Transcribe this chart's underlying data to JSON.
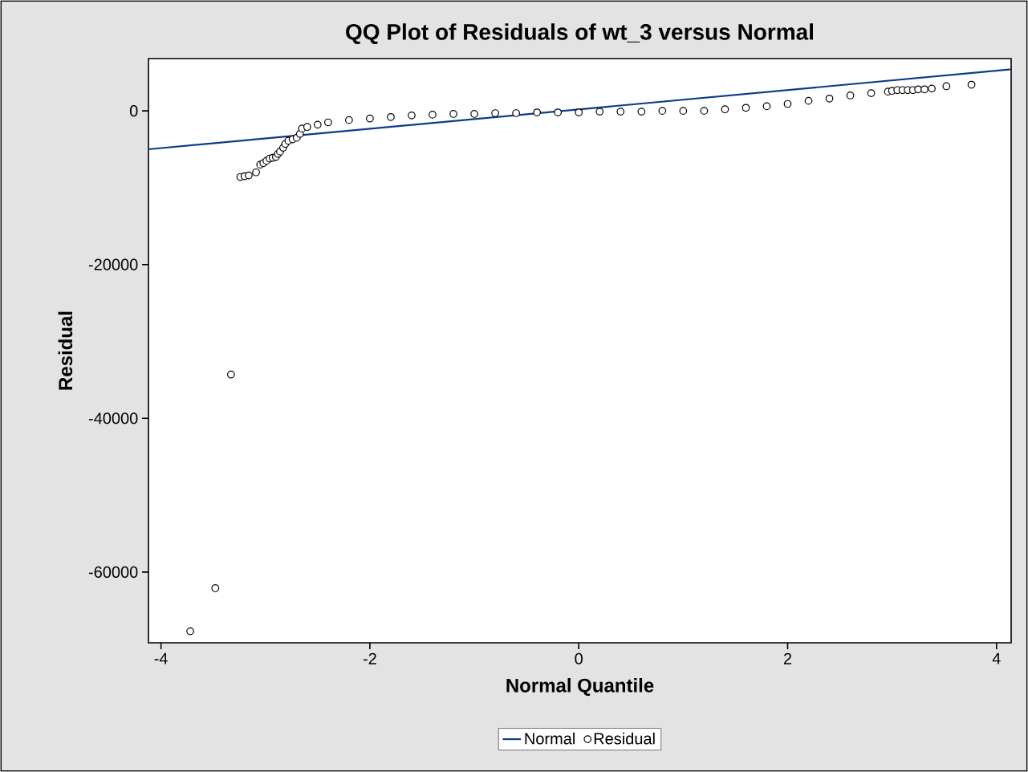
{
  "chart_data": {
    "type": "scatter",
    "title": "QQ Plot of Residuals of wt_3 versus Normal",
    "xlabel": "Normal Quantile",
    "ylabel": "Residual",
    "xlim": [
      -4.12,
      4.14
    ],
    "ylim": [
      -69200,
      6800
    ],
    "xticks": [
      -4,
      -2,
      0,
      2,
      4
    ],
    "yticks": [
      -60000,
      -40000,
      -20000,
      0
    ],
    "legend": "bottom",
    "grid": false,
    "series": [
      {
        "name": "Normal",
        "type": "line",
        "color": "#0b3b8a",
        "marker": "none",
        "x": [
          -4.12,
          4.14
        ],
        "values": [
          -5000,
          5400
        ]
      },
      {
        "name": "Residual",
        "color": "#000000",
        "marker": "circle",
        "x": [
          -3.72,
          -3.48,
          -3.33,
          -3.24,
          -3.2,
          -3.16,
          -3.09,
          -3.05,
          -3.02,
          -2.99,
          -2.96,
          -2.93,
          -2.9,
          -2.88,
          -2.86,
          -2.83,
          -2.81,
          -2.78,
          -2.74,
          -2.7,
          -2.67,
          -2.65,
          -2.6,
          -2.5,
          -2.4,
          -2.2,
          -2.0,
          -1.8,
          -1.6,
          -1.4,
          -1.2,
          -1.0,
          -0.8,
          -0.6,
          -0.4,
          -0.2,
          0,
          0.2,
          0.4,
          0.6,
          0.8,
          1.0,
          1.2,
          1.4,
          1.6,
          1.8,
          2.0,
          2.2,
          2.4,
          2.6,
          2.8,
          2.96,
          3.0,
          3.05,
          3.1,
          3.15,
          3.2,
          3.25,
          3.31,
          3.38,
          3.52,
          3.76
        ],
        "values": [
          -67700,
          -62100,
          -34300,
          -8600,
          -8500,
          -8400,
          -8000,
          -7000,
          -6800,
          -6500,
          -6200,
          -6100,
          -6000,
          -5600,
          -5300,
          -4800,
          -4300,
          -3900,
          -3700,
          -3500,
          -3000,
          -2300,
          -2100,
          -1800,
          -1500,
          -1200,
          -1000,
          -800,
          -600,
          -500,
          -400,
          -400,
          -300,
          -300,
          -200,
          -200,
          -200,
          -100,
          -100,
          -100,
          0,
          0,
          0,
          200,
          400,
          600,
          900,
          1300,
          1600,
          2000,
          2300,
          2500,
          2600,
          2700,
          2700,
          2700,
          2700,
          2800,
          2800,
          2900,
          3200,
          3400
        ]
      }
    ]
  }
}
